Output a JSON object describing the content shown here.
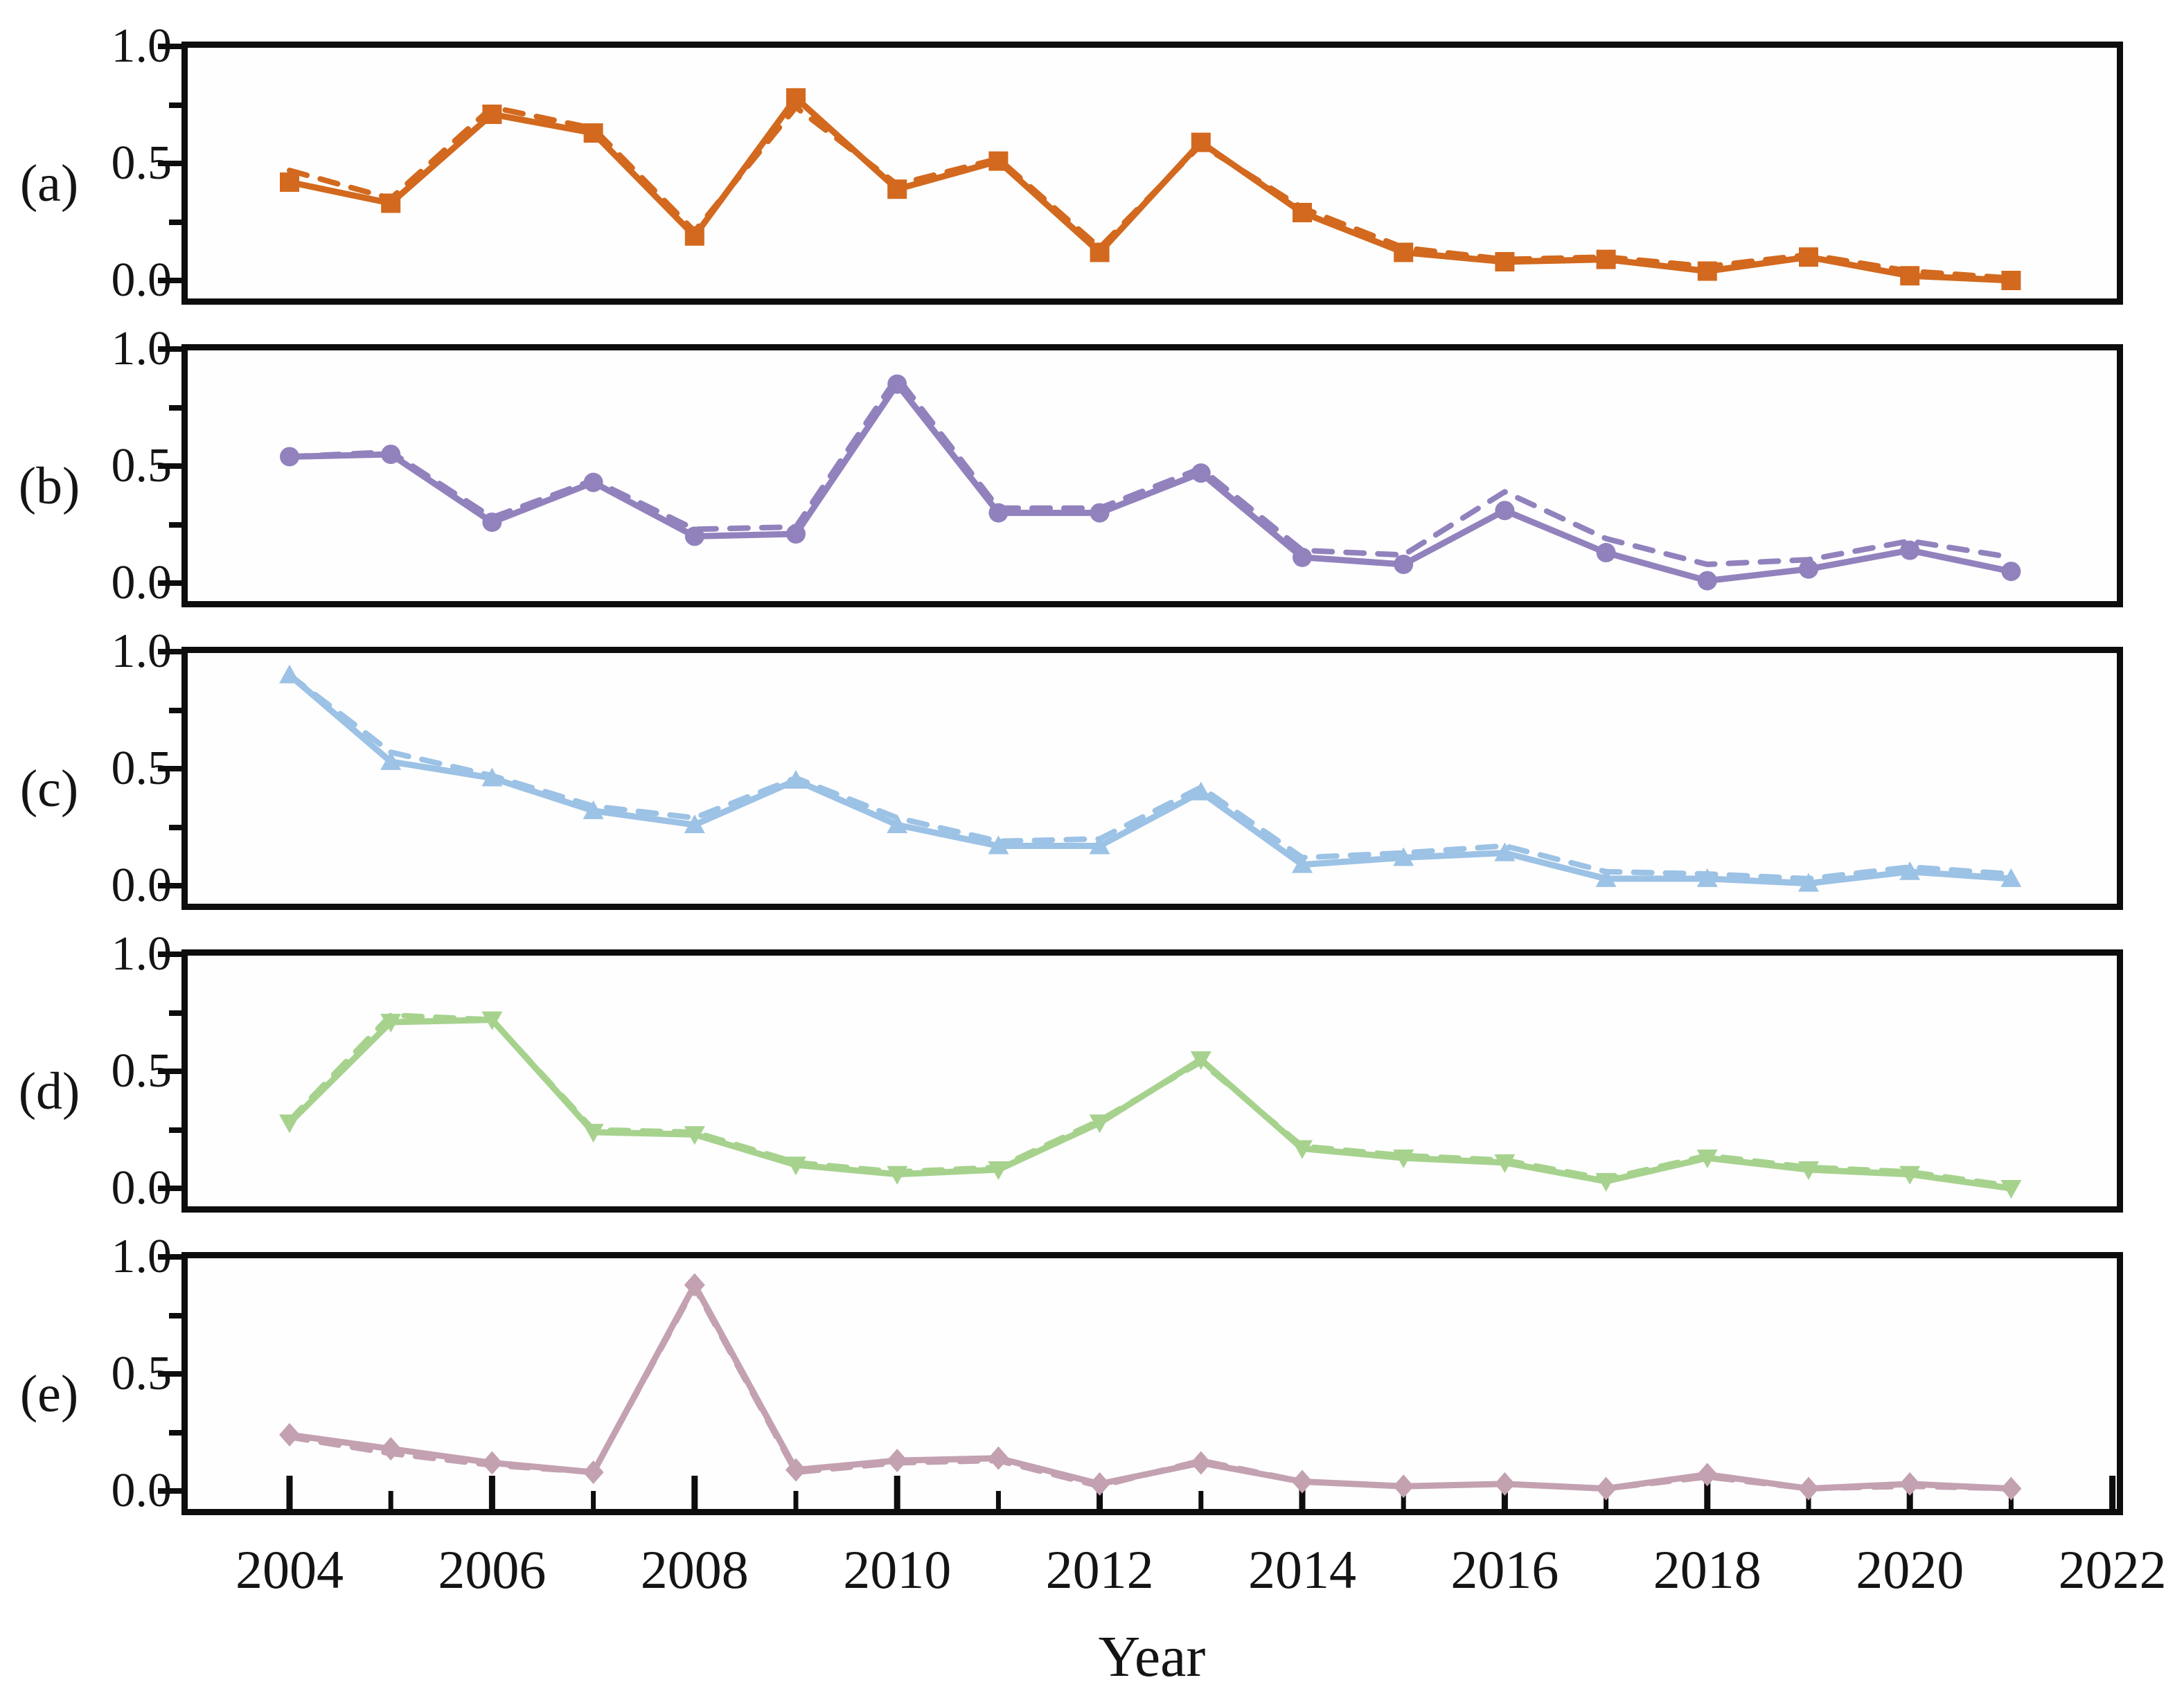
{
  "figure": {
    "xlabel": "Year",
    "x_tick_labels": [
      "2004",
      "2006",
      "2008",
      "2010",
      "2012",
      "2014",
      "2016",
      "2018",
      "2020",
      "2022"
    ],
    "y_tick_labels": [
      "1.0",
      "0.5",
      "0.0"
    ],
    "frame_color": "#0d0d0d",
    "background": "#ffffff"
  },
  "chart_data": {
    "type": "line",
    "title": "",
    "xlabel": "Year",
    "ylabel": "",
    "x_range": [
      2004,
      2022
    ],
    "y_range": [
      0.0,
      1.0
    ],
    "grid": false,
    "legend": "none",
    "years": [
      2004,
      2005,
      2006,
      2007,
      2008,
      2009,
      2010,
      2011,
      2012,
      2013,
      2014,
      2015,
      2016,
      2017,
      2018,
      2019,
      2020,
      2021
    ],
    "panels": [
      {
        "panel": "(a)",
        "marker": "square",
        "color": "#D2691E",
        "series": [
          {
            "name": "solid",
            "style": "solid",
            "values": [
              0.42,
              0.33,
              0.71,
              0.63,
              0.19,
              0.78,
              0.39,
              0.51,
              0.12,
              0.59,
              0.29,
              0.12,
              0.08,
              0.09,
              0.04,
              0.1,
              0.02,
              0.0
            ]
          },
          {
            "name": "dashed",
            "style": "dashed",
            "values": [
              0.47,
              0.35,
              0.74,
              0.65,
              0.21,
              0.74,
              0.41,
              0.52,
              0.14,
              0.58,
              0.31,
              0.14,
              0.09,
              0.1,
              0.06,
              0.11,
              0.04,
              0.01
            ]
          }
        ]
      },
      {
        "panel": "(b)",
        "marker": "circle",
        "color": "#9182BD",
        "series": [
          {
            "name": "solid",
            "style": "solid",
            "values": [
              0.54,
              0.55,
              0.26,
              0.43,
              0.2,
              0.21,
              0.85,
              0.3,
              0.3,
              0.47,
              0.11,
              0.08,
              0.31,
              0.13,
              0.01,
              0.06,
              0.14,
              0.05
            ]
          },
          {
            "name": "dashed",
            "style": "dashed",
            "values": [
              0.54,
              0.56,
              0.28,
              0.44,
              0.23,
              0.24,
              0.88,
              0.32,
              0.32,
              0.49,
              0.14,
              0.12,
              0.39,
              0.19,
              0.08,
              0.1,
              0.18,
              0.11
            ]
          }
        ]
      },
      {
        "panel": "(c)",
        "marker": "triangle-up",
        "color": "#9CC2E5",
        "series": [
          {
            "name": "solid",
            "style": "solid",
            "values": [
              0.9,
              0.53,
              0.46,
              0.32,
              0.26,
              0.45,
              0.26,
              0.17,
              0.17,
              0.4,
              0.09,
              0.12,
              0.14,
              0.03,
              0.03,
              0.01,
              0.06,
              0.03
            ]
          },
          {
            "name": "dashed",
            "style": "dashed",
            "values": [
              0.9,
              0.57,
              0.47,
              0.34,
              0.29,
              0.46,
              0.29,
              0.19,
              0.2,
              0.42,
              0.12,
              0.14,
              0.17,
              0.06,
              0.05,
              0.03,
              0.08,
              0.05
            ]
          }
        ]
      },
      {
        "panel": "(d)",
        "marker": "triangle-down",
        "color": "#A6D28E",
        "series": [
          {
            "name": "solid",
            "style": "solid",
            "values": [
              0.28,
              0.71,
              0.72,
              0.24,
              0.23,
              0.1,
              0.06,
              0.08,
              0.28,
              0.55,
              0.17,
              0.13,
              0.11,
              0.03,
              0.13,
              0.08,
              0.06,
              0.0
            ]
          },
          {
            "name": "dashed",
            "style": "dashed",
            "values": [
              0.29,
              0.74,
              0.72,
              0.25,
              0.24,
              0.11,
              0.07,
              0.09,
              0.29,
              0.54,
              0.18,
              0.14,
              0.12,
              0.04,
              0.14,
              0.09,
              0.07,
              0.01
            ]
          }
        ]
      },
      {
        "panel": "(e)",
        "marker": "diamond",
        "color": "#C3A1B1",
        "series": [
          {
            "name": "solid",
            "style": "solid",
            "values": [
              0.24,
              0.18,
              0.12,
              0.08,
              0.88,
              0.09,
              0.13,
              0.14,
              0.03,
              0.12,
              0.04,
              0.02,
              0.03,
              0.01,
              0.07,
              0.01,
              0.03,
              0.01
            ]
          },
          {
            "name": "dashed",
            "style": "dashed",
            "values": [
              0.23,
              0.16,
              0.11,
              0.08,
              0.87,
              0.08,
              0.12,
              0.13,
              0.02,
              0.13,
              0.04,
              0.02,
              0.03,
              0.01,
              0.06,
              0.01,
              0.02,
              0.01
            ]
          }
        ]
      }
    ]
  }
}
